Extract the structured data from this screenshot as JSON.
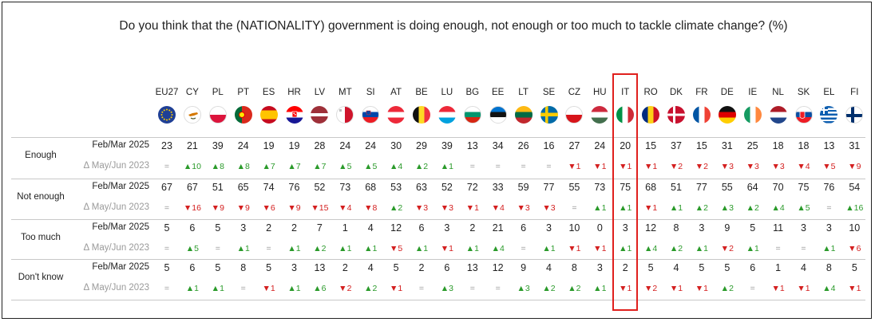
{
  "chart_data": {
    "type": "table",
    "title": "Do you think that the (NATIONALITY) government is doing enough, not enough or too much to tackle climate change? (%)",
    "highlighted": "IT",
    "countries": [
      "EU27",
      "CY",
      "PL",
      "PT",
      "ES",
      "HR",
      "LV",
      "MT",
      "SI",
      "AT",
      "BE",
      "LU",
      "BG",
      "EE",
      "LT",
      "SE",
      "CZ",
      "HU",
      "IT",
      "RO",
      "DK",
      "FR",
      "DE",
      "IE",
      "NL",
      "SK",
      "EL",
      "FI"
    ],
    "period_label": "Feb/Mar 2025",
    "delta_label": "Δ May/Jun 2023",
    "rows": [
      {
        "label": "Enough",
        "values": [
          "23",
          "21",
          "39",
          "24",
          "19",
          "19",
          "28",
          "24",
          "24",
          "30",
          "29",
          "39",
          "13",
          "34",
          "26",
          "16",
          "27",
          "24",
          "20",
          "15",
          "37",
          "15",
          "31",
          "25",
          "18",
          "18",
          "13",
          "31"
        ],
        "changes": [
          "=",
          "▲10",
          "▲8",
          "▲8",
          "▲7",
          "▲7",
          "▲7",
          "▲5",
          "▲5",
          "▲4",
          "▲2",
          "▲1",
          "=",
          "=",
          "=",
          "=",
          "▼1",
          "▼1",
          "▼1",
          "▼1",
          "▼2",
          "▼2",
          "▼3",
          "▼3",
          "▼3",
          "▼4",
          "▼5",
          "▼9"
        ]
      },
      {
        "label": "Not enough",
        "values": [
          "67",
          "67",
          "51",
          "65",
          "74",
          "76",
          "52",
          "73",
          "68",
          "53",
          "63",
          "52",
          "72",
          "33",
          "59",
          "77",
          "55",
          "73",
          "75",
          "68",
          "51",
          "77",
          "55",
          "64",
          "70",
          "75",
          "76",
          "54"
        ],
        "changes": [
          "=",
          "▼16",
          "▼9",
          "▼9",
          "▼6",
          "▼9",
          "▼15",
          "▼4",
          "▼8",
          "▲2",
          "▼3",
          "▼3",
          "▼1",
          "▼4",
          "▼3",
          "▼3",
          "=",
          "▲1",
          "▲1",
          "▼1",
          "▲1",
          "▲2",
          "▲3",
          "▲2",
          "▲4",
          "▲5",
          "=",
          "▲16"
        ]
      },
      {
        "label": "Too much",
        "values": [
          "5",
          "6",
          "5",
          "3",
          "2",
          "2",
          "7",
          "1",
          "4",
          "12",
          "6",
          "3",
          "2",
          "21",
          "6",
          "3",
          "10",
          "0",
          "3",
          "12",
          "8",
          "3",
          "9",
          "5",
          "11",
          "3",
          "3",
          "10"
        ],
        "changes": [
          "=",
          "▲5",
          "=",
          "▲1",
          "=",
          "▲1",
          "▲2",
          "▲1",
          "▲1",
          "▼5",
          "▲1",
          "▼1",
          "▲1",
          "▲4",
          "=",
          "▲1",
          "▼1",
          "▼1",
          "▲1",
          "▲4",
          "▲2",
          "▲1",
          "▼2",
          "▲1",
          "=",
          "=",
          "▲1",
          "▼6"
        ]
      },
      {
        "label": "Don't know",
        "values": [
          "5",
          "6",
          "5",
          "8",
          "5",
          "3",
          "13",
          "2",
          "4",
          "5",
          "2",
          "6",
          "13",
          "12",
          "9",
          "4",
          "8",
          "3",
          "2",
          "5",
          "4",
          "5",
          "5",
          "6",
          "1",
          "4",
          "8",
          "5"
        ],
        "changes": [
          "=",
          "▲1",
          "▲1",
          "=",
          "▼1",
          "▲1",
          "▲6",
          "▼2",
          "▲2",
          "▼1",
          "=",
          "▲3",
          "=",
          "=",
          "▲3",
          "▲2",
          "▲2",
          "▲1",
          "▼1",
          "▼2",
          "▼1",
          "▼1",
          "▲2",
          "=",
          "▼1",
          "▼1",
          "▲4",
          "▼1"
        ]
      }
    ]
  }
}
